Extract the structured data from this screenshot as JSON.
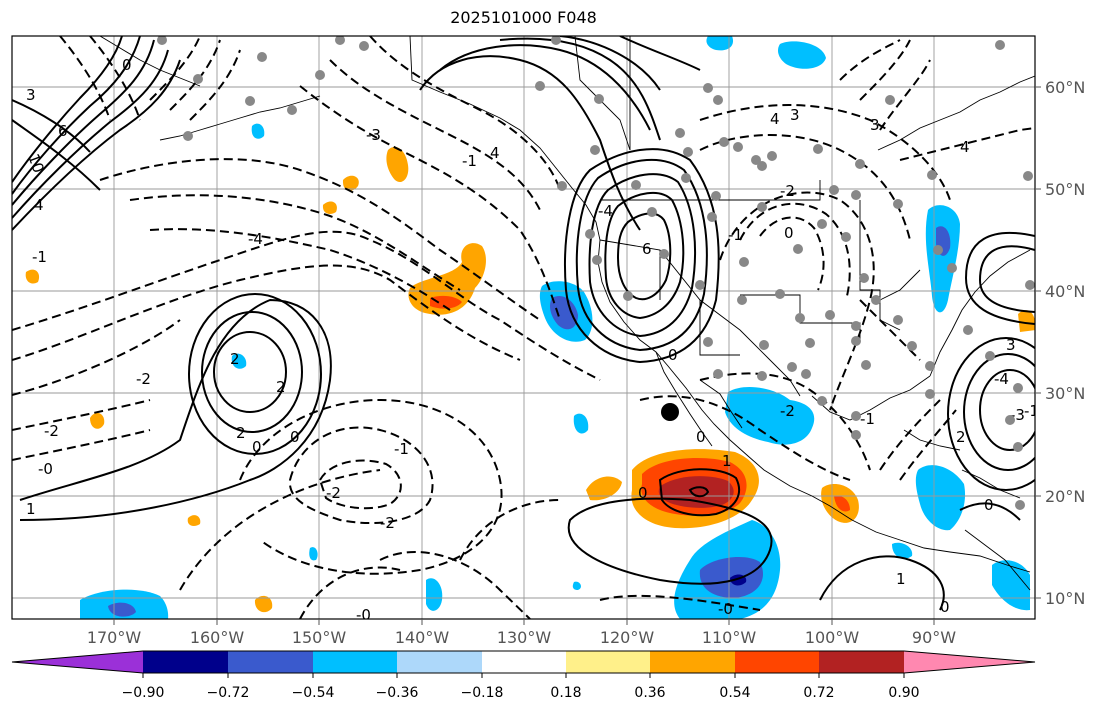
{
  "title": "2025101000 F048",
  "map": {
    "lon_ticks": [
      "170°W",
      "160°W",
      "150°W",
      "140°W",
      "130°W",
      "120°W",
      "110°W",
      "100°W",
      "90°W"
    ],
    "lat_ticks": [
      "60°N",
      "50°N",
      "40°N",
      "30°N",
      "20°N",
      "10°N"
    ],
    "contour_labels": [
      {
        "text": "3",
        "k": "nw3"
      },
      {
        "text": "6",
        "k": "nw6"
      },
      {
        "text": "10",
        "k": "nw10"
      },
      {
        "text": "4",
        "k": "nw4"
      },
      {
        "text": "0",
        "k": "nw0"
      },
      {
        "text": "-1",
        "k": "nwm1"
      },
      {
        "text": "-3",
        "k": "m3a"
      },
      {
        "text": "-4",
        "k": "m4a"
      },
      {
        "text": "-1",
        "k": "m1b"
      },
      {
        "text": "-2",
        "k": "m2a"
      },
      {
        "text": "2",
        "k": "p2a"
      },
      {
        "text": "2",
        "k": "p2b"
      },
      {
        "text": "2",
        "k": "p2c"
      },
      {
        "text": "0",
        "k": "z0a"
      },
      {
        "text": "0",
        "k": "z0b"
      },
      {
        "text": "-2",
        "k": "m2b"
      },
      {
        "text": "-0",
        "k": "mz0"
      },
      {
        "text": "1",
        "k": "p1a"
      },
      {
        "text": "-1",
        "k": "m1c"
      },
      {
        "text": "-2",
        "k": "m2c"
      },
      {
        "text": "-2",
        "k": "m2d"
      },
      {
        "text": "-0",
        "k": "mz1"
      },
      {
        "text": "6",
        "k": "p6a"
      },
      {
        "text": "4",
        "k": "p4a"
      },
      {
        "text": "-4",
        "k": "m4b"
      },
      {
        "text": "-1",
        "k": "m1d"
      },
      {
        "text": "0",
        "k": "z0c"
      },
      {
        "text": "-2",
        "k": "m2e"
      },
      {
        "text": "3",
        "k": "p3a"
      },
      {
        "text": "4",
        "k": "p4b"
      },
      {
        "text": "-2",
        "k": "m2f"
      },
      {
        "text": "0",
        "k": "z0d"
      },
      {
        "text": "1",
        "k": "p1b"
      },
      {
        "text": "0",
        "k": "z0e"
      },
      {
        "text": "-0",
        "k": "mz2"
      },
      {
        "text": "0",
        "k": "z0f"
      },
      {
        "text": "-1",
        "k": "m1e"
      },
      {
        "text": "4",
        "k": "p4c"
      },
      {
        "text": "3",
        "k": "p3b"
      },
      {
        "text": "3",
        "k": "p3c"
      },
      {
        "text": "0",
        "k": "z0g"
      },
      {
        "text": "-4",
        "k": "m4c"
      },
      {
        "text": "-3",
        "k": "m3b"
      },
      {
        "text": "2",
        "k": "p2d"
      },
      {
        "text": "1",
        "k": "p1c"
      },
      {
        "text": "-1",
        "k": "m1f"
      },
      {
        "text": "0",
        "k": "z0h"
      }
    ]
  },
  "colorbar": {
    "colors": [
      "#9b30d8",
      "#00008b",
      "#3a5acd",
      "#00bfff",
      "#add8fa",
      "#ffffff",
      "#fff08a",
      "#ffa500",
      "#ff4500",
      "#b22222",
      "#ff88b0"
    ],
    "tick_labels": [
      "−0.90",
      "−0.72",
      "−0.54",
      "−0.36",
      "−0.18",
      "0.18",
      "0.36",
      "0.54",
      "0.72",
      "0.90"
    ]
  }
}
